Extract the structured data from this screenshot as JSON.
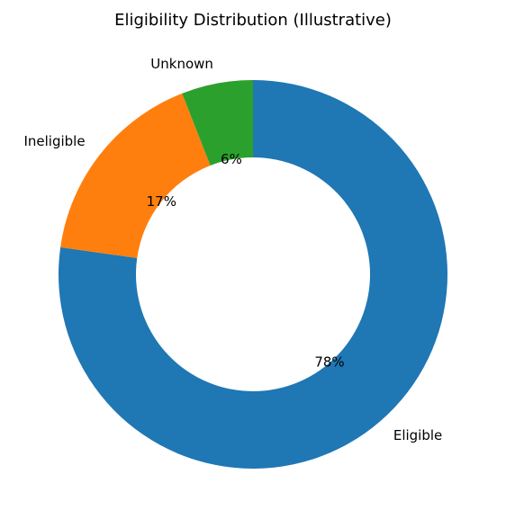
{
  "chart_data": {
    "type": "pie",
    "title": "Eligibility Distribution (Illustrative)",
    "labels": [
      "Eligible",
      "Ineligible",
      "Unknown"
    ],
    "values": [
      78,
      17,
      6
    ],
    "pct_labels": [
      "78%",
      "17%",
      "6%"
    ],
    "colors": [
      "#1f77b4",
      "#ff7f0e",
      "#2ca02c"
    ],
    "donut": true,
    "start_angle_deg": 90,
    "direction": "clockwise",
    "legend": "none"
  }
}
